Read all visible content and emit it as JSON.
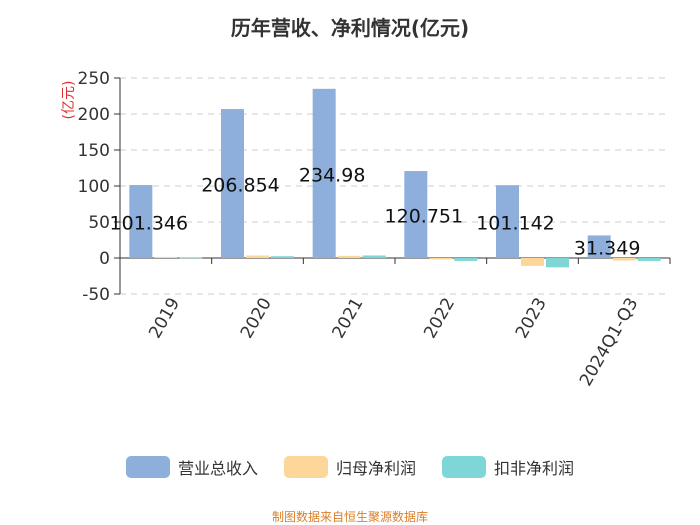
{
  "chart_data": {
    "type": "bar",
    "title": "历年营收、净利情况(亿元)",
    "ylabel": "(亿元)",
    "ylim": [
      -50,
      250
    ],
    "yticks": [
      250,
      200,
      150,
      100,
      50,
      0,
      -50
    ],
    "grid": true,
    "legend_position": "bottom",
    "categories": [
      "2019",
      "2020",
      "2021",
      "2022",
      "2023",
      "2024Q1-Q3"
    ],
    "series": [
      {
        "name": "营业总收入",
        "color": "#8eaedc",
        "values": [
          101.346,
          206.854,
          234.98,
          120.751,
          101.142,
          31.349
        ],
        "labels": [
          "101.346",
          "206.854",
          "234.98",
          "120.751",
          "101.142",
          "31.349"
        ]
      },
      {
        "name": "归母净利润",
        "color": "#fdd79a",
        "values": [
          1.5,
          3.5,
          3.0,
          -2.0,
          -11.0,
          -3.5
        ]
      },
      {
        "name": "扣非净利润",
        "color": "#7fd6d6",
        "values": [
          1.0,
          2.5,
          3.5,
          -4.0,
          -13.0,
          -4.0
        ]
      }
    ]
  },
  "footer": "制图数据来自恒生聚源数据库"
}
